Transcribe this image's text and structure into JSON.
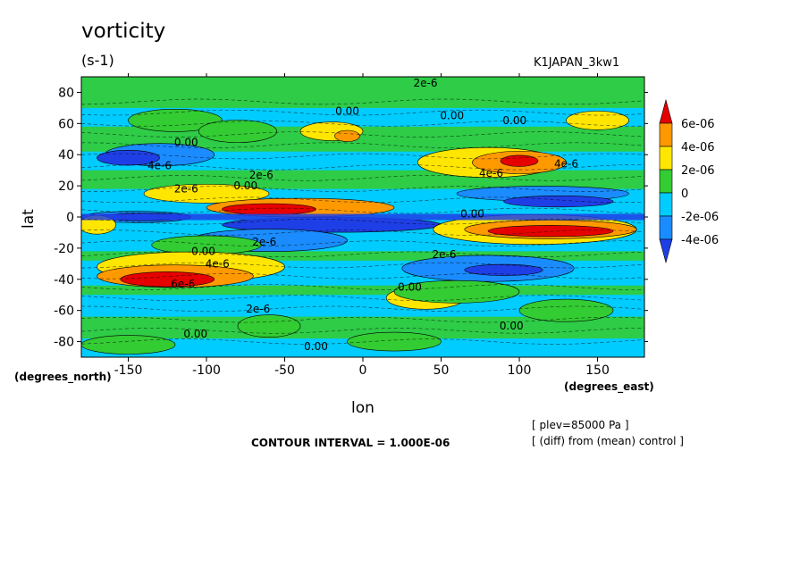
{
  "title": "vorticity",
  "units": "(s-1)",
  "run_name": "K1JAPAN_3kw1",
  "lat_unit": "(degrees_north)",
  "lon_unit": "(degrees_east)",
  "contour_interval": "CONTOUR INTERVAL = 1.000E-06",
  "notes": [
    "[ plev=85000 Pa ]",
    "[ (diff) from (mean) control ]"
  ],
  "chart_data": {
    "type": "heatmap",
    "title": "vorticity",
    "xlabel": "lon",
    "ylabel": "lat",
    "xlim": [
      -180,
      180
    ],
    "ylim": [
      -90,
      90
    ],
    "x_ticks": [
      -150,
      -100,
      -50,
      0,
      50,
      100,
      150
    ],
    "y_ticks": [
      -80,
      -60,
      -40,
      -20,
      0,
      20,
      40,
      60,
      80
    ],
    "x_tick_labels": [
      "-150",
      "-100",
      "-50",
      "0",
      "50",
      "100",
      "150"
    ],
    "y_tick_labels": [
      "-80",
      "-60",
      "-40",
      "-20",
      "0",
      "20",
      "40",
      "60",
      "80"
    ],
    "colorbar": {
      "labels": [
        "6e-06",
        "4e-06",
        "2e-06",
        "0",
        "-2e-06",
        "-4e-06"
      ],
      "colors": [
        "#e60000",
        "#ff9900",
        "#ffe600",
        "#33cc33",
        "#00ccff",
        "#1a8cff",
        "#1f3fe6"
      ]
    },
    "contour_labels": [
      {
        "text": "2e-6",
        "lon": 40,
        "lat": 86
      },
      {
        "text": "0.00",
        "lon": -10,
        "lat": 68
      },
      {
        "text": "0.00",
        "lon": 57,
        "lat": 65
      },
      {
        "text": "0.00",
        "lon": 97,
        "lat": 62
      },
      {
        "text": "0.00",
        "lon": -113,
        "lat": 48
      },
      {
        "text": "4e-6",
        "lon": -130,
        "lat": 33
      },
      {
        "text": "2e-6",
        "lon": -65,
        "lat": 27
      },
      {
        "text": "2e-6",
        "lon": -113,
        "lat": 18
      },
      {
        "text": "0.00",
        "lon": -75,
        "lat": 20
      },
      {
        "text": "4e-6",
        "lon": 82,
        "lat": 28
      },
      {
        "text": "4e-6",
        "lon": 130,
        "lat": 34
      },
      {
        "text": "0.00",
        "lon": 70,
        "lat": 2
      },
      {
        "text": "2e-6",
        "lon": -63,
        "lat": -16
      },
      {
        "text": "0.00",
        "lon": -102,
        "lat": -22
      },
      {
        "text": "4e-6",
        "lon": -93,
        "lat": -30
      },
      {
        "text": "2e-6",
        "lon": 52,
        "lat": -24
      },
      {
        "text": "0.00",
        "lon": 30,
        "lat": -45
      },
      {
        "text": "6e-6",
        "lon": -115,
        "lat": -43
      },
      {
        "text": "2e-6",
        "lon": -67,
        "lat": -59
      },
      {
        "text": "0.00",
        "lon": -107,
        "lat": -75
      },
      {
        "text": "0.00",
        "lon": -30,
        "lat": -83
      },
      {
        "text": "0.00",
        "lon": 95,
        "lat": -70
      }
    ],
    "fields": [
      {
        "level": 0,
        "lon": -120,
        "lat": 62,
        "rx": 30,
        "ry": 6
      },
      {
        "level": 1,
        "lon": -130,
        "lat": 40,
        "rx": 35,
        "ry": 6
      },
      {
        "level": 2,
        "lon": -150,
        "lat": 38,
        "rx": 20,
        "ry": 4
      },
      {
        "level": 0,
        "lon": -80,
        "lat": 55,
        "rx": 25,
        "ry": 6
      },
      {
        "level": 3,
        "lon": -20,
        "lat": 55,
        "rx": 20,
        "ry": 5
      },
      {
        "level": 4,
        "lon": -10,
        "lat": 52,
        "rx": 8,
        "ry": 3
      },
      {
        "level": 3,
        "lon": 80,
        "lat": 35,
        "rx": 45,
        "ry": 8
      },
      {
        "level": 4,
        "lon": 100,
        "lat": 35,
        "rx": 30,
        "ry": 6
      },
      {
        "level": 5,
        "lon": 100,
        "lat": 36,
        "rx": 12,
        "ry": 3
      },
      {
        "level": 3,
        "lon": 150,
        "lat": 62,
        "rx": 20,
        "ry": 5
      },
      {
        "level": 3,
        "lon": -100,
        "lat": 15,
        "rx": 40,
        "ry": 5
      },
      {
        "level": 4,
        "lon": -40,
        "lat": 6,
        "rx": 60,
        "ry": 5
      },
      {
        "level": 5,
        "lon": -60,
        "lat": 5,
        "rx": 30,
        "ry": 3
      },
      {
        "level": 1,
        "lon": 115,
        "lat": 15,
        "rx": 55,
        "ry": 4
      },
      {
        "level": 2,
        "lon": 125,
        "lat": 10,
        "rx": 35,
        "ry": 3
      },
      {
        "level": 1,
        "lon": -145,
        "lat": 0,
        "rx": 35,
        "ry": 3
      },
      {
        "level": 2,
        "lon": -140,
        "lat": 0,
        "rx": 30,
        "ry": 2
      },
      {
        "level": 2,
        "lon": -20,
        "lat": -5,
        "rx": 70,
        "ry": 4
      },
      {
        "level": 1,
        "lon": -60,
        "lat": -15,
        "rx": 50,
        "ry": 6
      },
      {
        "level": 3,
        "lon": -170,
        "lat": -5,
        "rx": 12,
        "ry": 5
      },
      {
        "level": 3,
        "lon": 110,
        "lat": -8,
        "rx": 65,
        "ry": 8
      },
      {
        "level": 4,
        "lon": 120,
        "lat": -8,
        "rx": 55,
        "ry": 5
      },
      {
        "level": 5,
        "lon": 120,
        "lat": -9,
        "rx": 40,
        "ry": 3
      },
      {
        "level": 0,
        "lon": -100,
        "lat": -18,
        "rx": 35,
        "ry": 5
      },
      {
        "level": 3,
        "lon": -110,
        "lat": -32,
        "rx": 60,
        "ry": 8
      },
      {
        "level": 4,
        "lon": -120,
        "lat": -38,
        "rx": 50,
        "ry": 6
      },
      {
        "level": 5,
        "lon": -125,
        "lat": -40,
        "rx": 30,
        "ry": 4
      },
      {
        "level": 1,
        "lon": 80,
        "lat": -33,
        "rx": 55,
        "ry": 7
      },
      {
        "level": 2,
        "lon": 90,
        "lat": -34,
        "rx": 25,
        "ry": 3
      },
      {
        "level": 3,
        "lon": 40,
        "lat": -52,
        "rx": 25,
        "ry": 6
      },
      {
        "level": 0,
        "lon": 60,
        "lat": -48,
        "rx": 40,
        "ry": 6
      },
      {
        "level": 0,
        "lon": 20,
        "lat": -80,
        "rx": 30,
        "ry": 5
      },
      {
        "level": 0,
        "lon": -150,
        "lat": -82,
        "rx": 30,
        "ry": 5
      },
      {
        "level": 0,
        "lon": 130,
        "lat": -60,
        "rx": 30,
        "ry": 6
      },
      {
        "level": 0,
        "lon": -60,
        "lat": -70,
        "rx": 20,
        "ry": 6
      }
    ]
  }
}
